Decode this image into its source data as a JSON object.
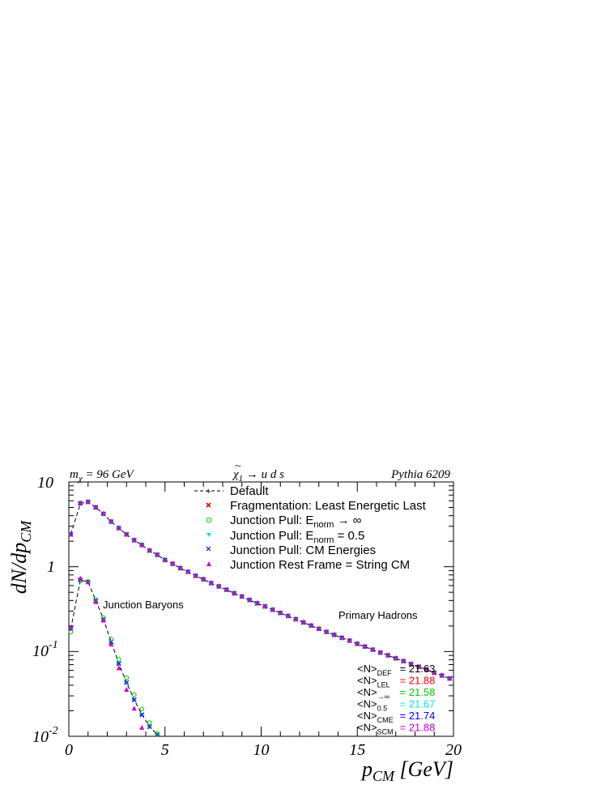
{
  "header": {
    "left_prefix": "m",
    "left_sub": "χ",
    "left_suffix": " = 96 GeV",
    "center_tilde": "~",
    "center_chi": "χ",
    "center_sub": "1",
    "center_rest": " → u d s",
    "right": "Pythia 6209"
  },
  "axes": {
    "ylabel_main": "dN/dp",
    "ylabel_sub": "CM",
    "xlabel_main": "p",
    "xlabel_sub": "CM",
    "xlabel_unit": " [GeV]",
    "y_tick_1": "10",
    "y_tick_2": "1",
    "y_tick_3_base": "10",
    "y_tick_3_exp": "-1",
    "y_tick_4_base": "10",
    "y_tick_4_exp": "-2",
    "x_ticks": [
      "0",
      "5",
      "10",
      "15",
      "20"
    ]
  },
  "legend": {
    "entry_1": "Default",
    "entry_2": "Fragmentation: Least Energetic Last",
    "entry_3_pre": "Junction Pull: E",
    "entry_3_sub": "norm",
    "entry_3_post": " → ∞",
    "entry_4_pre": "Junction Pull: E",
    "entry_4_sub": "norm",
    "entry_4_post": " = 0.5",
    "entry_5": "Junction Pull: CM Energies",
    "entry_6": "Junction Rest Frame = String CM"
  },
  "annotations": {
    "junction": "Junction Baryons",
    "primary": "Primary Hadrons"
  },
  "stats": [
    {
      "sub": "DEF",
      "value": "= 21.63"
    },
    {
      "sub": "LEL",
      "value": "= 21.88"
    },
    {
      "sub": "→∞",
      "value": "= 21.58"
    },
    {
      "sub": "0.5",
      "value": "= 21.67"
    },
    {
      "sub": "CME",
      "value": "= 21.74"
    },
    {
      "sub": "SCM",
      "value": "= 21.88"
    }
  ],
  "colors": {
    "def": "#000000",
    "lel": "#ff0000",
    "inf": "#00cc00",
    "half": "#00e5e5",
    "cme": "#0000ff",
    "scm": "#cc00cc"
  },
  "chart_data": {
    "type": "scatter",
    "x_axis": {
      "range": [
        0,
        20
      ]
    },
    "y_axis": {
      "range": [
        0.01,
        10
      ],
      "scale": "log"
    },
    "series_markers": [
      "dashed-line",
      "x-red",
      "circle-green",
      "triangle-down-cyan",
      "x-blue",
      "triangle-up-magenta"
    ],
    "primary_hadrons": {
      "x": [
        0.1,
        0.6,
        1.0,
        1.4,
        1.8,
        2.2,
        2.6,
        3.0,
        3.4,
        3.8,
        4.2,
        4.6,
        5.0,
        5.4,
        5.8,
        6.2,
        6.6,
        7.0,
        7.4,
        7.8,
        8.2,
        8.6,
        9.0,
        9.4,
        9.8,
        10.2,
        10.6,
        11.0,
        11.4,
        11.8,
        12.2,
        12.6,
        13.0,
        13.4,
        13.8,
        14.2,
        14.6,
        15.0,
        15.4,
        15.8,
        16.2,
        16.6,
        17.0,
        17.4,
        17.8,
        18.2,
        18.6,
        19.0,
        19.4,
        19.8
      ],
      "y": [
        2.4,
        5.6,
        5.8,
        5.0,
        4.2,
        3.4,
        2.85,
        2.4,
        2.05,
        1.8,
        1.55,
        1.38,
        1.2,
        1.08,
        0.96,
        0.87,
        0.78,
        0.71,
        0.64,
        0.585,
        0.535,
        0.485,
        0.445,
        0.405,
        0.37,
        0.34,
        0.31,
        0.285,
        0.262,
        0.24,
        0.22,
        0.202,
        0.185,
        0.17,
        0.157,
        0.145,
        0.134,
        0.123,
        0.114,
        0.105,
        0.097,
        0.09,
        0.083,
        0.077,
        0.071,
        0.066,
        0.061,
        0.056,
        0.052,
        0.048
      ]
    },
    "junction_baryons": {
      "x": [
        0.1,
        0.6,
        1.0,
        1.4,
        1.8,
        2.2,
        2.6,
        3.0,
        3.4,
        3.8,
        4.2,
        4.6
      ],
      "y": [
        0.185,
        0.7,
        0.66,
        0.4,
        0.24,
        0.13,
        0.072,
        0.043,
        0.027,
        0.018,
        0.013,
        0.0105
      ],
      "y_triangle_up": [
        0.19,
        0.72,
        0.65,
        0.38,
        0.23,
        0.12,
        0.063,
        0.035,
        0.021,
        0.0125,
        null,
        null
      ],
      "y_circle": [
        0.17,
        0.68,
        0.67,
        0.41,
        0.25,
        0.14,
        0.081,
        0.049,
        0.031,
        0.021,
        0.0145,
        0.0108
      ]
    }
  }
}
